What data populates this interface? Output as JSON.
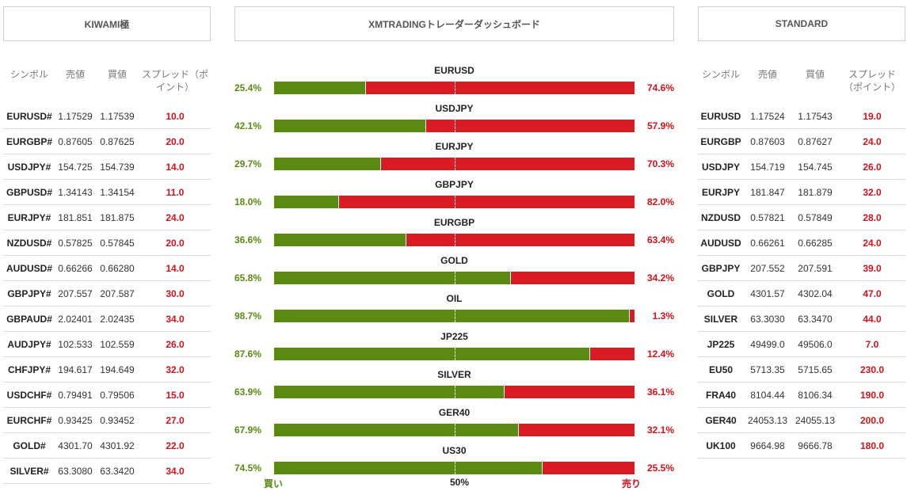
{
  "tabs": {
    "left": "KIWAMI極",
    "center": "XMTRADINGトレーダーダッシュボード",
    "right": "STANDARD"
  },
  "kiwami": {
    "headers": {
      "symbol": "シンボル",
      "bid": "売値",
      "ask": "買値",
      "spread": "スプレッド（ポイント）"
    },
    "rows": [
      {
        "symbol": "EURUSD#",
        "bid": "1.17529",
        "ask": "1.17539",
        "spread": "10.0"
      },
      {
        "symbol": "EURGBP#",
        "bid": "0.87605",
        "ask": "0.87625",
        "spread": "20.0"
      },
      {
        "symbol": "USDJPY#",
        "bid": "154.725",
        "ask": "154.739",
        "spread": "14.0"
      },
      {
        "symbol": "GBPUSD#",
        "bid": "1.34143",
        "ask": "1.34154",
        "spread": "11.0"
      },
      {
        "symbol": "EURJPY#",
        "bid": "181.851",
        "ask": "181.875",
        "spread": "24.0"
      },
      {
        "symbol": "NZDUSD#",
        "bid": "0.57825",
        "ask": "0.57845",
        "spread": "20.0"
      },
      {
        "symbol": "AUDUSD#",
        "bid": "0.66266",
        "ask": "0.66280",
        "spread": "14.0"
      },
      {
        "symbol": "GBPJPY#",
        "bid": "207.557",
        "ask": "207.587",
        "spread": "30.0"
      },
      {
        "symbol": "GBPAUD#",
        "bid": "2.02401",
        "ask": "2.02435",
        "spread": "34.0"
      },
      {
        "symbol": "AUDJPY#",
        "bid": "102.533",
        "ask": "102.559",
        "spread": "26.0"
      },
      {
        "symbol": "CHFJPY#",
        "bid": "194.617",
        "ask": "194.649",
        "spread": "32.0"
      },
      {
        "symbol": "USDCHF#",
        "bid": "0.79491",
        "ask": "0.79506",
        "spread": "15.0"
      },
      {
        "symbol": "EURCHF#",
        "bid": "0.93425",
        "ask": "0.93452",
        "spread": "27.0"
      },
      {
        "symbol": "GOLD#",
        "bid": "4301.70",
        "ask": "4301.92",
        "spread": "22.0"
      },
      {
        "symbol": "SILVER#",
        "bid": "63.3080",
        "ask": "63.3420",
        "spread": "34.0"
      }
    ]
  },
  "standard": {
    "headers": {
      "symbol": "シンボル",
      "bid": "売値",
      "ask": "買値",
      "spread": "スプレッド（ポイント）"
    },
    "rows": [
      {
        "symbol": "EURUSD",
        "bid": "1.17524",
        "ask": "1.17543",
        "spread": "19.0"
      },
      {
        "symbol": "EURGBP",
        "bid": "0.87603",
        "ask": "0.87627",
        "spread": "24.0"
      },
      {
        "symbol": "USDJPY",
        "bid": "154.719",
        "ask": "154.745",
        "spread": "26.0"
      },
      {
        "symbol": "EURJPY",
        "bid": "181.847",
        "ask": "181.879",
        "spread": "32.0"
      },
      {
        "symbol": "NZDUSD",
        "bid": "0.57821",
        "ask": "0.57849",
        "spread": "28.0"
      },
      {
        "symbol": "AUDUSD",
        "bid": "0.66261",
        "ask": "0.66285",
        "spread": "24.0"
      },
      {
        "symbol": "GBPJPY",
        "bid": "207.552",
        "ask": "207.591",
        "spread": "39.0"
      },
      {
        "symbol": "GOLD",
        "bid": "4301.57",
        "ask": "4302.04",
        "spread": "47.0"
      },
      {
        "symbol": "SILVER",
        "bid": "63.3030",
        "ask": "63.3470",
        "spread": "44.0"
      },
      {
        "symbol": "JP225",
        "bid": "49499.0",
        "ask": "49506.0",
        "spread": "7.0"
      },
      {
        "symbol": "EU50",
        "bid": "5713.35",
        "ask": "5715.65",
        "spread": "230.0"
      },
      {
        "symbol": "FRA40",
        "bid": "8104.44",
        "ask": "8106.34",
        "spread": "190.0"
      },
      {
        "symbol": "GER40",
        "bid": "24053.13",
        "ask": "24055.13",
        "spread": "200.0"
      },
      {
        "symbol": "UK100",
        "bid": "9664.98",
        "ask": "9666.78",
        "spread": "180.0"
      }
    ]
  },
  "sentiment": {
    "items": [
      {
        "symbol": "EURUSD",
        "buy_pct": 25.4,
        "buy": "25.4%",
        "sell": "74.6%"
      },
      {
        "symbol": "USDJPY",
        "buy_pct": 42.1,
        "buy": "42.1%",
        "sell": "57.9%"
      },
      {
        "symbol": "EURJPY",
        "buy_pct": 29.7,
        "buy": "29.7%",
        "sell": "70.3%"
      },
      {
        "symbol": "GBPJPY",
        "buy_pct": 18.0,
        "buy": "18.0%",
        "sell": "82.0%"
      },
      {
        "symbol": "EURGBP",
        "buy_pct": 36.6,
        "buy": "36.6%",
        "sell": "63.4%"
      },
      {
        "symbol": "GOLD",
        "buy_pct": 65.8,
        "buy": "65.8%",
        "sell": "34.2%"
      },
      {
        "symbol": "OIL",
        "buy_pct": 98.7,
        "buy": "98.7%",
        "sell": "1.3%"
      },
      {
        "symbol": "JP225",
        "buy_pct": 87.6,
        "buy": "87.6%",
        "sell": "12.4%"
      },
      {
        "symbol": "SILVER",
        "buy_pct": 63.9,
        "buy": "63.9%",
        "sell": "36.1%"
      },
      {
        "symbol": "GER40",
        "buy_pct": 67.9,
        "buy": "67.9%",
        "sell": "32.1%"
      },
      {
        "symbol": "US30",
        "buy_pct": 74.5,
        "buy": "74.5%",
        "sell": "25.5%"
      }
    ],
    "footer": {
      "buy_label": "買い",
      "mid_label": "50%",
      "sell_label": "売り"
    }
  },
  "colors": {
    "buy": "#5a8a12",
    "sell": "#d91b24",
    "spread": "#d0121b"
  }
}
